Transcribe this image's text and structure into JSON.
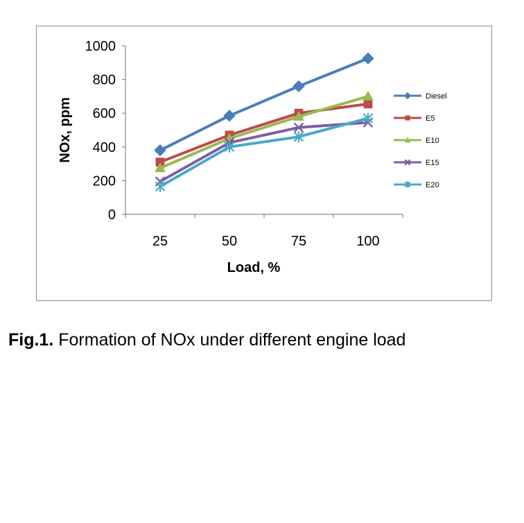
{
  "chart_data": {
    "type": "line",
    "title": "",
    "xlabel": "Load, %",
    "ylabel": "NOx, ppm",
    "categories": [
      "25",
      "50",
      "75",
      "100"
    ],
    "yticks": [
      "0",
      "200",
      "400",
      "600",
      "800",
      "1000"
    ],
    "ylim": [
      0,
      1000
    ],
    "grid": false,
    "legend": "right",
    "series": [
      {
        "name": "Diesel",
        "values": [
          380,
          585,
          760,
          925
        ],
        "color": "#4a7ebb",
        "marker": "diamond"
      },
      {
        "name": "E5",
        "values": [
          310,
          470,
          600,
          655
        ],
        "color": "#be4b48",
        "marker": "square"
      },
      {
        "name": "E10",
        "values": [
          275,
          450,
          580,
          700
        ],
        "color": "#98b954",
        "marker": "triangle"
      },
      {
        "name": "E15",
        "values": [
          195,
          425,
          515,
          545
        ],
        "color": "#7d5fa0",
        "marker": "x"
      },
      {
        "name": "E20",
        "values": [
          165,
          400,
          460,
          570
        ],
        "color": "#46aac5",
        "marker": "star"
      }
    ]
  },
  "caption": {
    "label": "Fig.1.",
    "text": " Formation of NOx under different engine load"
  }
}
